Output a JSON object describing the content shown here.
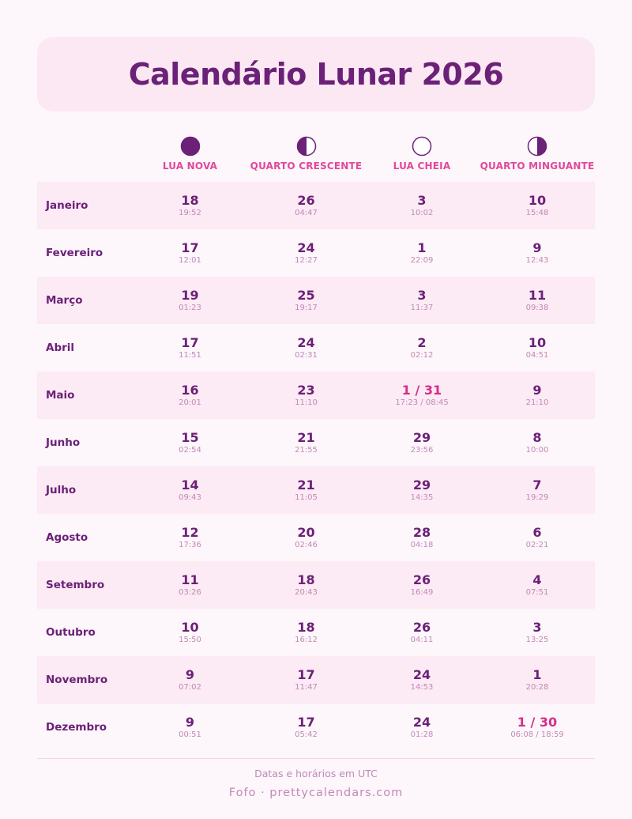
{
  "title": "Calendário Lunar 2026",
  "colors": {
    "primary": "#6b2178",
    "accent": "#e0489a",
    "highlight": "#d42e8a",
    "muted": "#c08ab6",
    "row_shade": "#fceaf4",
    "title_bg": "#fbe8f2",
    "background": "#fdf6fb"
  },
  "phases": [
    {
      "label": "LUA NOVA",
      "icon": "new-moon-icon"
    },
    {
      "label": "QUARTO CRESCENTE",
      "icon": "first-quarter-moon-icon"
    },
    {
      "label": "LUA CHEIA",
      "icon": "full-moon-icon"
    },
    {
      "label": "QUARTO MINGUANTE",
      "icon": "last-quarter-moon-icon"
    }
  ],
  "rows": [
    {
      "month": "Janeiro",
      "cells": [
        {
          "day": "18",
          "time": "19:52"
        },
        {
          "day": "26",
          "time": "04:47"
        },
        {
          "day": "3",
          "time": "10:02"
        },
        {
          "day": "10",
          "time": "15:48"
        }
      ]
    },
    {
      "month": "Fevereiro",
      "cells": [
        {
          "day": "17",
          "time": "12:01"
        },
        {
          "day": "24",
          "time": "12:27"
        },
        {
          "day": "1",
          "time": "22:09"
        },
        {
          "day": "9",
          "time": "12:43"
        }
      ]
    },
    {
      "month": "Março",
      "cells": [
        {
          "day": "19",
          "time": "01:23"
        },
        {
          "day": "25",
          "time": "19:17"
        },
        {
          "day": "3",
          "time": "11:37"
        },
        {
          "day": "11",
          "time": "09:38"
        }
      ]
    },
    {
      "month": "Abril",
      "cells": [
        {
          "day": "17",
          "time": "11:51"
        },
        {
          "day": "24",
          "time": "02:31"
        },
        {
          "day": "2",
          "time": "02:12"
        },
        {
          "day": "10",
          "time": "04:51"
        }
      ]
    },
    {
      "month": "Maio",
      "cells": [
        {
          "day": "16",
          "time": "20:01"
        },
        {
          "day": "23",
          "time": "11:10"
        },
        {
          "day": "1 / 31",
          "time": "17:23 / 08:45",
          "highlight": true
        },
        {
          "day": "9",
          "time": "21:10"
        }
      ]
    },
    {
      "month": "Junho",
      "cells": [
        {
          "day": "15",
          "time": "02:54"
        },
        {
          "day": "21",
          "time": "21:55"
        },
        {
          "day": "29",
          "time": "23:56"
        },
        {
          "day": "8",
          "time": "10:00"
        }
      ]
    },
    {
      "month": "Julho",
      "cells": [
        {
          "day": "14",
          "time": "09:43"
        },
        {
          "day": "21",
          "time": "11:05"
        },
        {
          "day": "29",
          "time": "14:35"
        },
        {
          "day": "7",
          "time": "19:29"
        }
      ]
    },
    {
      "month": "Agosto",
      "cells": [
        {
          "day": "12",
          "time": "17:36"
        },
        {
          "day": "20",
          "time": "02:46"
        },
        {
          "day": "28",
          "time": "04:18"
        },
        {
          "day": "6",
          "time": "02:21"
        }
      ]
    },
    {
      "month": "Setembro",
      "cells": [
        {
          "day": "11",
          "time": "03:26"
        },
        {
          "day": "18",
          "time": "20:43"
        },
        {
          "day": "26",
          "time": "16:49"
        },
        {
          "day": "4",
          "time": "07:51"
        }
      ]
    },
    {
      "month": "Outubro",
      "cells": [
        {
          "day": "10",
          "time": "15:50"
        },
        {
          "day": "18",
          "time": "16:12"
        },
        {
          "day": "26",
          "time": "04:11"
        },
        {
          "day": "3",
          "time": "13:25"
        }
      ]
    },
    {
      "month": "Novembro",
      "cells": [
        {
          "day": "9",
          "time": "07:02"
        },
        {
          "day": "17",
          "time": "11:47"
        },
        {
          "day": "24",
          "time": "14:53"
        },
        {
          "day": "1",
          "time": "20:28"
        }
      ]
    },
    {
      "month": "Dezembro",
      "cells": [
        {
          "day": "9",
          "time": "00:51"
        },
        {
          "day": "17",
          "time": "05:42"
        },
        {
          "day": "24",
          "time": "01:28"
        },
        {
          "day": "1 / 30",
          "time": "06:08 / 18:59",
          "highlight": true
        }
      ]
    }
  ],
  "footer": {
    "note": "Datas e horários em UTC",
    "brand": "Fofo · prettycalendars.com"
  }
}
